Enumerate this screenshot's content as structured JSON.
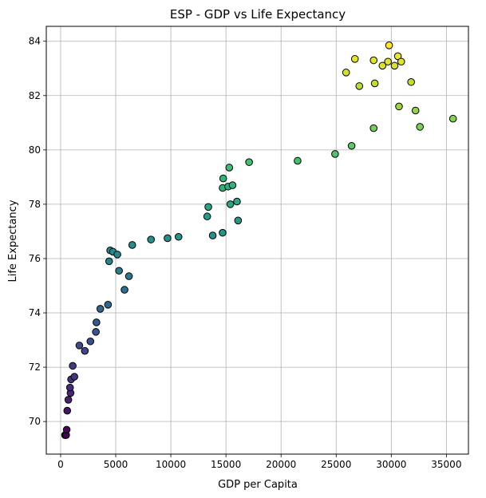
{
  "chart_data": {
    "type": "scatter",
    "title": "ESP - GDP vs Life Expectancy",
    "xlabel": "GDP per Capita",
    "ylabel": "Life Expectancy",
    "xlim": [
      -1300,
      37000
    ],
    "ylim": [
      68.8,
      84.55
    ],
    "xticks": [
      0,
      5000,
      10000,
      15000,
      20000,
      25000,
      30000,
      35000
    ],
    "yticks": [
      70,
      72,
      74,
      76,
      78,
      80,
      82,
      84
    ],
    "grid": true,
    "colormap": "viridis",
    "marker_edge_color": "#000000",
    "points": [
      {
        "x": 400,
        "y": 69.5
      },
      {
        "x": 500,
        "y": 69.5
      },
      {
        "x": 550,
        "y": 69.7
      },
      {
        "x": 600,
        "y": 70.4
      },
      {
        "x": 700,
        "y": 70.8
      },
      {
        "x": 900,
        "y": 71.05
      },
      {
        "x": 850,
        "y": 71.25
      },
      {
        "x": 950,
        "y": 71.55
      },
      {
        "x": 1100,
        "y": 72.05
      },
      {
        "x": 1250,
        "y": 71.65
      },
      {
        "x": 1700,
        "y": 72.8
      },
      {
        "x": 2200,
        "y": 72.6
      },
      {
        "x": 2700,
        "y": 72.95
      },
      {
        "x": 3200,
        "y": 73.3
      },
      {
        "x": 3250,
        "y": 73.65
      },
      {
        "x": 3600,
        "y": 74.15
      },
      {
        "x": 4300,
        "y": 74.3
      },
      {
        "x": 4400,
        "y": 75.9
      },
      {
        "x": 4500,
        "y": 76.3
      },
      {
        "x": 4750,
        "y": 76.25
      },
      {
        "x": 5150,
        "y": 76.15
      },
      {
        "x": 5300,
        "y": 75.55
      },
      {
        "x": 5800,
        "y": 74.85
      },
      {
        "x": 6200,
        "y": 75.35
      },
      {
        "x": 6500,
        "y": 76.5
      },
      {
        "x": 8200,
        "y": 76.7
      },
      {
        "x": 9700,
        "y": 76.75
      },
      {
        "x": 10700,
        "y": 76.8
      },
      {
        "x": 13300,
        "y": 77.55
      },
      {
        "x": 13400,
        "y": 77.9
      },
      {
        "x": 13800,
        "y": 76.85
      },
      {
        "x": 14700,
        "y": 76.95
      },
      {
        "x": 14700,
        "y": 78.6
      },
      {
        "x": 14750,
        "y": 78.95
      },
      {
        "x": 15200,
        "y": 78.65
      },
      {
        "x": 15300,
        "y": 79.35
      },
      {
        "x": 15400,
        "y": 78.0
      },
      {
        "x": 15600,
        "y": 78.7
      },
      {
        "x": 16000,
        "y": 78.1
      },
      {
        "x": 16100,
        "y": 77.4
      },
      {
        "x": 17100,
        "y": 79.55
      },
      {
        "x": 21500,
        "y": 79.6
      },
      {
        "x": 24900,
        "y": 79.85
      },
      {
        "x": 26400,
        "y": 80.15
      },
      {
        "x": 25900,
        "y": 82.85
      },
      {
        "x": 26700,
        "y": 83.35
      },
      {
        "x": 27100,
        "y": 82.35
      },
      {
        "x": 28400,
        "y": 83.3
      },
      {
        "x": 28400,
        "y": 80.8
      },
      {
        "x": 28500,
        "y": 82.45
      },
      {
        "x": 29200,
        "y": 83.1
      },
      {
        "x": 29700,
        "y": 83.25
      },
      {
        "x": 29800,
        "y": 83.85
      },
      {
        "x": 30300,
        "y": 83.1
      },
      {
        "x": 30600,
        "y": 83.45
      },
      {
        "x": 30700,
        "y": 81.6
      },
      {
        "x": 30900,
        "y": 83.25
      },
      {
        "x": 31800,
        "y": 82.5
      },
      {
        "x": 32200,
        "y": 81.45
      },
      {
        "x": 32600,
        "y": 80.85
      },
      {
        "x": 35600,
        "y": 81.15
      }
    ]
  }
}
